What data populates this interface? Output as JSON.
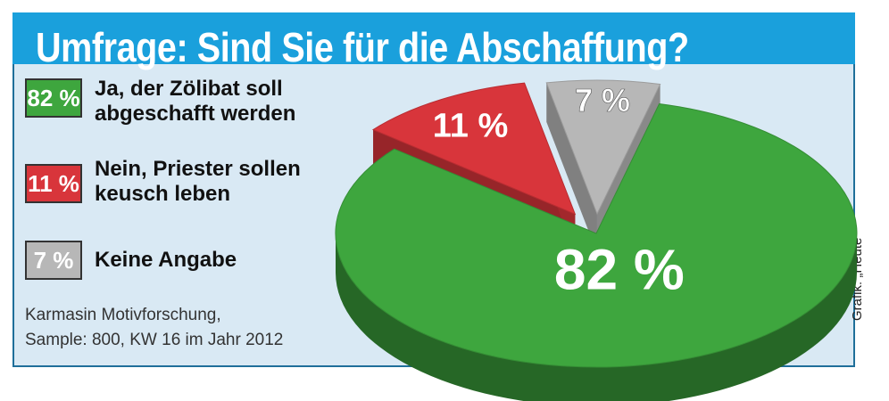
{
  "chart_data": {
    "type": "pie",
    "title": "Umfrage: Sind Sie für die Abschaffung?",
    "slices": [
      {
        "label": "Ja, der Zölibat soll\nabgeschafft werden",
        "value": 82,
        "value_label": "82 %",
        "color": "#3ea63e"
      },
      {
        "label": "Nein, Priester sollen\nkeusch leben",
        "value": 11,
        "value_label": "11 %",
        "color": "#d8353b"
      },
      {
        "label": "Keine Angabe",
        "value": 7,
        "value_label": "7 %",
        "color": "#b7b7b7"
      }
    ],
    "legend_position": "left",
    "source": "Karmasin Motivforschung,\nSample: 800, KW 16 im Jahr 2012",
    "credit": "Grafik: „Heute“"
  }
}
